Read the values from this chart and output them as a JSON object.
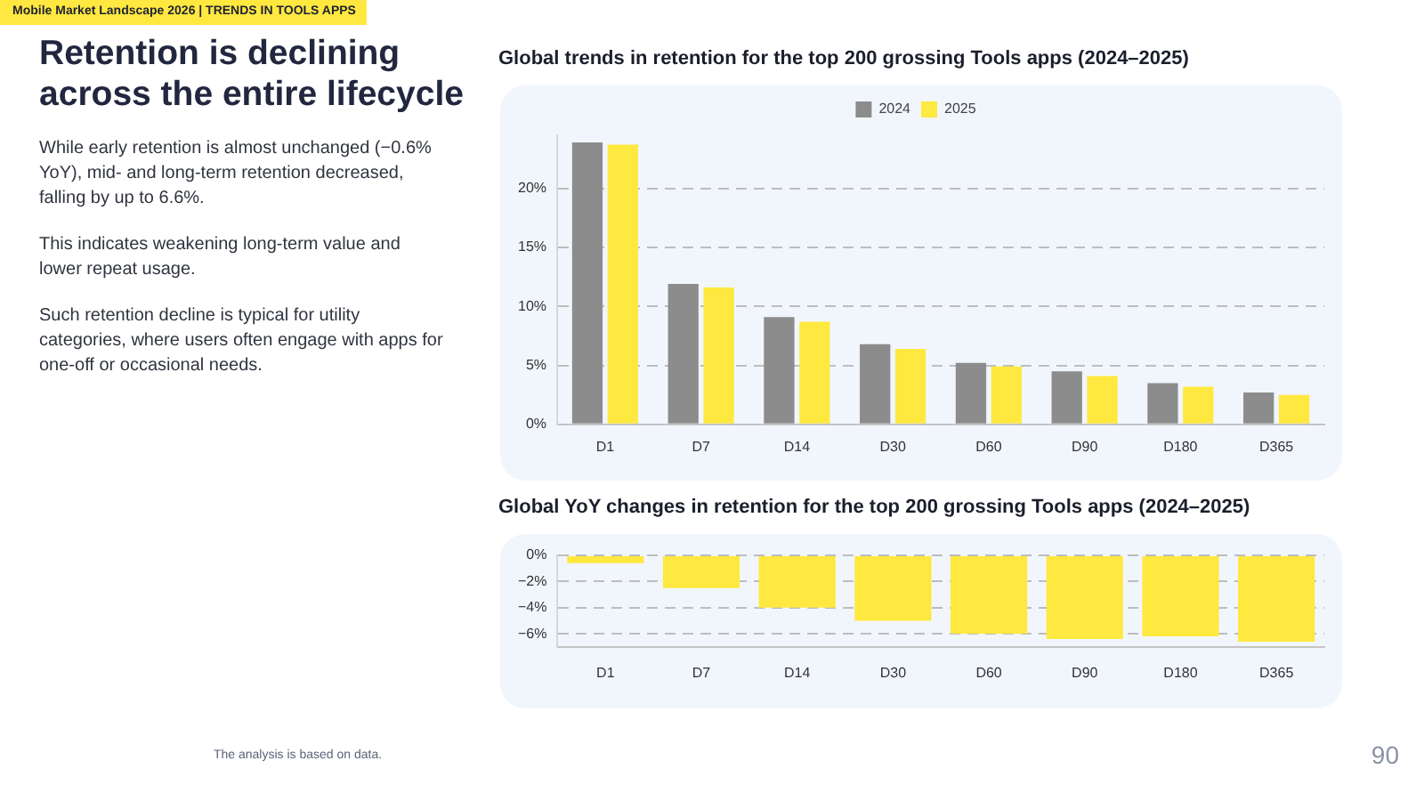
{
  "chart_data": [
    {
      "type": "other",
      "title": "Retention is declining across the entire lifecycle",
      "subtitle": "Mobile Market Landscape 2026 | TRENDS IN TOOLS APPS",
      "annotations": [
        "While early retention is almost unchanged (−0.6% YoY), mid- and long-term retention decreased, falling by up to 6.6%.",
        "This indicates weakening long-term value and lower repeat usage.",
        "Such retention decline is typical for utility categories, where users often engage with apps for one-off or occasional needs."
      ]
    },
    {
      "type": "bar",
      "title": "Global trends in retention for the top 200 grossing Tools apps (2024–2025)",
      "categories": [
        "D1",
        "D7",
        "D14",
        "D30",
        "D60",
        "D90",
        "D180",
        "D365"
      ],
      "series": [
        {
          "name": "2024",
          "color": "#8c8c8c",
          "values": [
            23.9,
            11.9,
            9.1,
            6.8,
            5.2,
            4.5,
            3.5,
            2.7
          ]
        },
        {
          "name": "2025",
          "color": "#ffe83f",
          "values": [
            23.7,
            11.6,
            8.7,
            6.4,
            4.9,
            4.1,
            3.2,
            2.5
          ]
        }
      ],
      "ylim": [
        0,
        24.5
      ],
      "yticks": [
        {
          "value": 0,
          "label": "0%"
        },
        {
          "value": 5,
          "label": "5%"
        },
        {
          "value": 10,
          "label": "10%"
        },
        {
          "value": 15,
          "label": "15%"
        },
        {
          "value": 20,
          "label": "20%"
        }
      ],
      "grid": "y",
      "legend": "top"
    },
    {
      "type": "bar",
      "title": "Global YoY changes in retention for the top 200 grossing Tools apps (2024–2025)",
      "categories": [
        "D1",
        "D7",
        "D14",
        "D30",
        "D60",
        "D90",
        "D180",
        "D365"
      ],
      "values": [
        -0.6,
        -2.5,
        -4.0,
        -5.0,
        -6.0,
        -6.4,
        -6.2,
        -6.6
      ],
      "color": "#ffe83f",
      "ylim": [
        -7,
        0
      ],
      "yticks": [
        {
          "value": 0,
          "label": "0%"
        },
        {
          "value": -2,
          "label": "−2%"
        },
        {
          "value": -4,
          "label": "−4%"
        },
        {
          "value": -6,
          "label": "−6%"
        }
      ],
      "grid": "y",
      "annotations": [
        "The analysis is based on data.",
        "90"
      ]
    }
  ]
}
